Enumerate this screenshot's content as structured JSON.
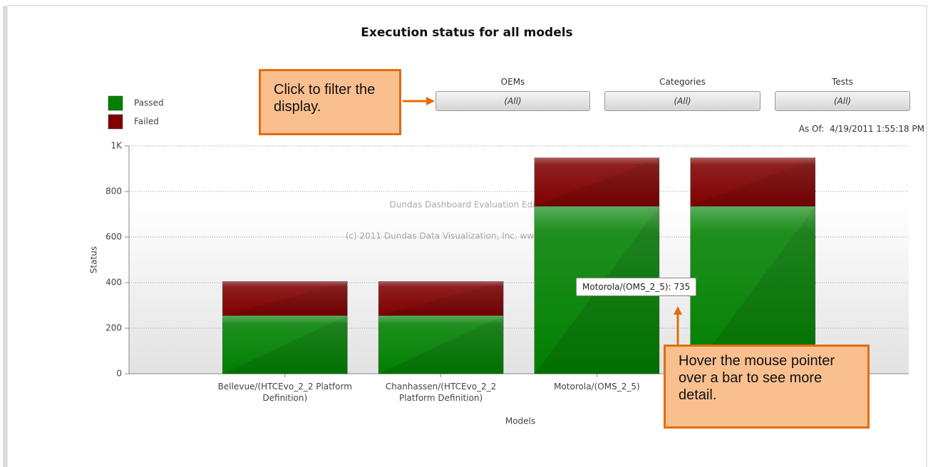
{
  "chart_data": {
    "type": "stacked_bar",
    "title": "Execution status for all models",
    "x_label": "Models",
    "y_label": "Status",
    "categories": [
      "Bellevue/(HTCEvo_2_2 Platform Definition)",
      "Chanhassen/(HTCEvo_2_2 Platform Definition)",
      "Motorola/(OMS_2_5)",
      null
    ],
    "series": [
      {
        "name": "Passed",
        "color": "#008000",
        "values": [
          255,
          255,
          735,
          735
        ]
      },
      {
        "name": "Failed",
        "color": "#800000",
        "values": [
          150,
          150,
          213,
          213
        ]
      }
    ],
    "ylim": [
      0,
      1000
    ],
    "yticks": [
      0,
      200,
      400,
      600,
      800,
      {
        "value": 1000,
        "label": "1K"
      }
    ],
    "grid": true,
    "legend": "top-left",
    "watermark": [
      "Dundas Dashboard Evaluation Edition",
      "(c) 2011 Dundas Data Visualization, Inc. www.dundas.com"
    ],
    "tooltip": "Motorola/(OMS_2_5): 735"
  },
  "filters": [
    {
      "label": "OEMs",
      "value": "(All)"
    },
    {
      "label": "Categories",
      "value": "(All)"
    },
    {
      "label": "Tests",
      "value": "(All)"
    }
  ],
  "as_of": {
    "label": "As Of:",
    "value": "4/19/2011 1:55:18 PM"
  },
  "callouts": [
    "Click to filter the display.",
    "Hover the mouse pointer over a bar to see more detail."
  ]
}
